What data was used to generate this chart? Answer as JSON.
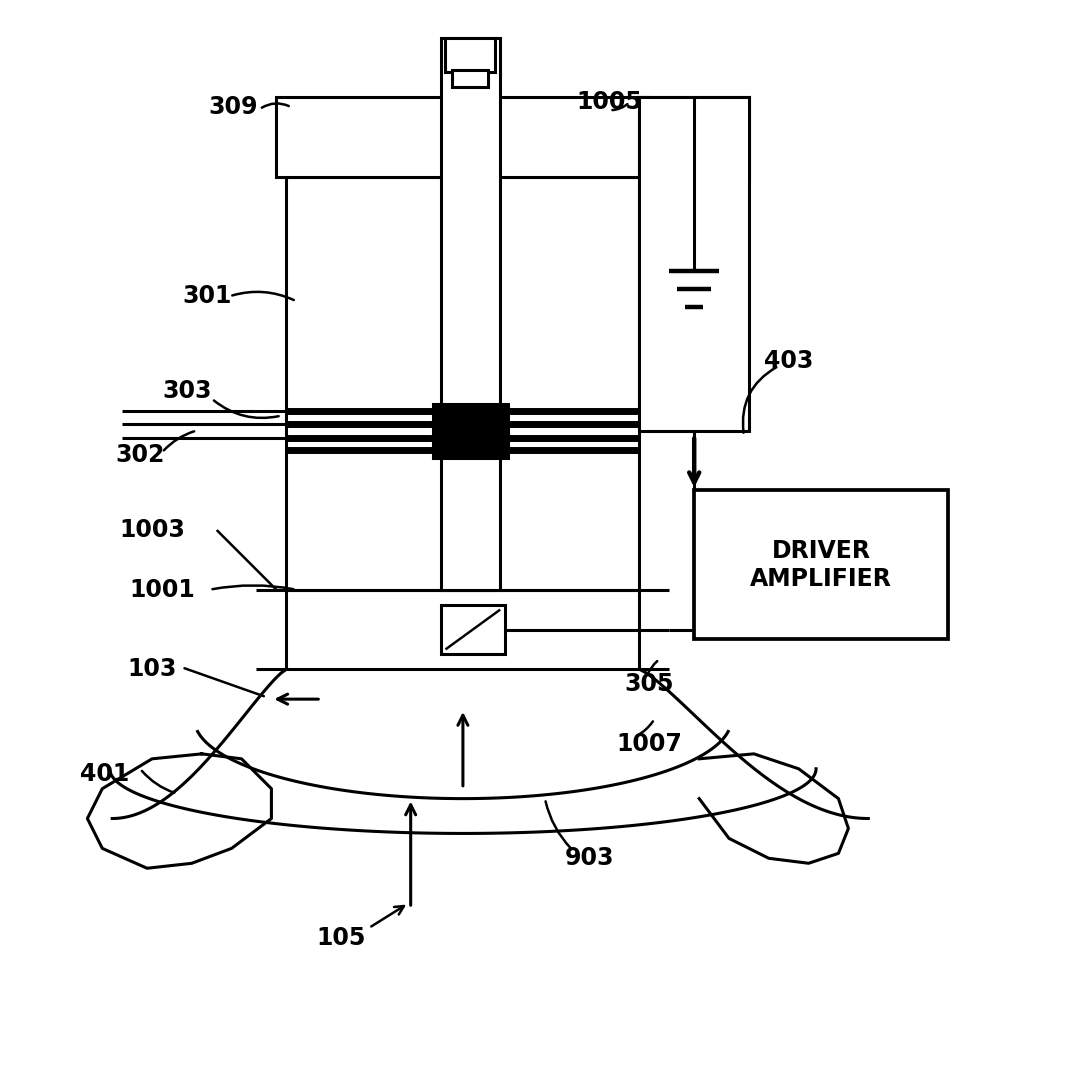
{
  "bg_color": "#ffffff",
  "lw": 2.2,
  "lw_thick": 5.0,
  "figsize": [
    10.82,
    10.69
  ],
  "dpi": 100
}
